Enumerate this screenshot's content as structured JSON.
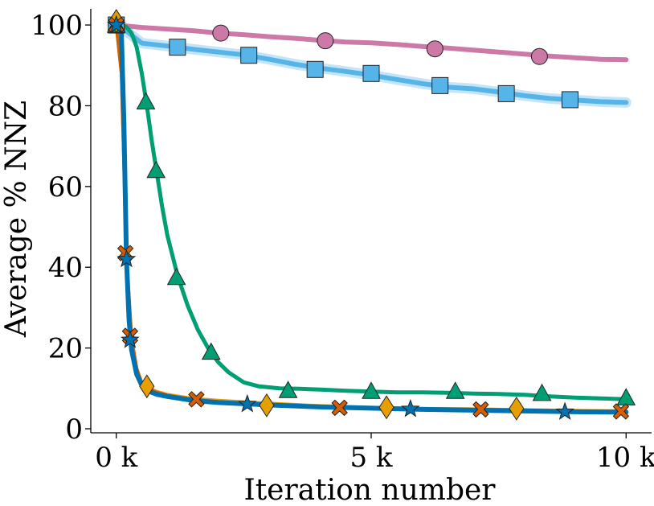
{
  "chart_data": {
    "type": "line",
    "xlabel": "Iteration number",
    "ylabel": "Average % NNZ",
    "xlim": [
      -500,
      10500
    ],
    "ylim": [
      -1,
      104
    ],
    "xticks": [
      0,
      5000,
      10000
    ],
    "xtick_labels": [
      "0 k",
      "5 k",
      "10 k"
    ],
    "yticks": [
      0,
      20,
      40,
      60,
      80,
      100
    ],
    "ytick_labels": [
      "0",
      "20",
      "40",
      "60",
      "80",
      "100"
    ],
    "grid": false,
    "legend": "none",
    "series": [
      {
        "color": "#CC79A7",
        "marker": "circle",
        "x": [
          0,
          500,
          1000,
          1500,
          2000,
          2500,
          3000,
          3500,
          4000,
          4500,
          5000,
          5500,
          6000,
          6500,
          7000,
          7500,
          8000,
          8500,
          9000,
          9500,
          10000
        ],
        "y": [
          100,
          99.4,
          99.0,
          98.6,
          98.0,
          97.6,
          97.1,
          96.7,
          96.2,
          95.8,
          95.6,
          95.2,
          94.7,
          94.3,
          93.8,
          93.3,
          92.8,
          92.3,
          91.9,
          91.5,
          91.4
        ],
        "markers_x": [
          0,
          2050,
          4100,
          6250,
          8300
        ],
        "markers_y": [
          100,
          98.0,
          96.1,
          94.1,
          92.2
        ]
      },
      {
        "color": "#56B4E9",
        "marker": "square",
        "x": [
          0,
          250,
          500,
          1000,
          1500,
          2000,
          2500,
          3000,
          3500,
          4000,
          4500,
          5000,
          5500,
          6000,
          6500,
          7000,
          7500,
          8000,
          8500,
          9000,
          9500,
          10000
        ],
        "y": [
          100,
          98.0,
          95.5,
          94.8,
          94.0,
          93.3,
          92.6,
          91.5,
          90.3,
          89.3,
          88.5,
          87.6,
          86.5,
          85.5,
          84.6,
          84.2,
          83.4,
          82.5,
          81.8,
          81.4,
          81.0,
          80.8
        ],
        "markers_x": [
          0,
          1200,
          2600,
          3900,
          5000,
          6350,
          7650,
          8900
        ],
        "markers_y": [
          100,
          94.5,
          92.5,
          89.0,
          88.0,
          85.0,
          83.0,
          81.5
        ]
      },
      {
        "color": "#009E73",
        "marker": "triangle",
        "x": [
          0,
          100,
          200,
          300,
          400,
          500,
          600,
          700,
          800,
          900,
          1000,
          1200,
          1400,
          1600,
          1800,
          2000,
          2200,
          2500,
          2800,
          3200,
          3600,
          4000,
          4500,
          5000,
          5500,
          6000,
          6500,
          7000,
          7500,
          8000,
          8500,
          9000,
          9500,
          10000
        ],
        "y": [
          100,
          100,
          99.5,
          98.0,
          94.5,
          88.0,
          80.0,
          71.0,
          63.0,
          55.0,
          48.0,
          38.0,
          30.5,
          24.5,
          20.0,
          16.5,
          14.0,
          11.5,
          10.5,
          10.0,
          9.9,
          9.7,
          9.4,
          9.2,
          9.0,
          9.0,
          8.9,
          8.7,
          8.6,
          8.4,
          8.0,
          7.7,
          7.5,
          7.3
        ],
        "markers_x": [
          0,
          580,
          780,
          1180,
          1860,
          3370,
          5000,
          6650,
          8350,
          10000
        ],
        "markers_y": [
          100,
          81.0,
          64.0,
          37.5,
          19.0,
          9.5,
          9.3,
          9.3,
          8.8,
          7.7
        ]
      },
      {
        "color": "#E69F00",
        "marker": "diamond",
        "x": [
          0,
          100,
          200,
          300,
          400,
          500,
          600,
          800,
          1000,
          1500,
          2000,
          3000,
          4000,
          5000,
          6000,
          7000,
          8000,
          9000,
          10000
        ],
        "y": [
          100,
          88.0,
          42.5,
          22.0,
          15.0,
          11.5,
          10.2,
          9.2,
          8.5,
          7.5,
          7.0,
          6.3,
          5.7,
          5.3,
          5.0,
          4.9,
          4.7,
          4.5,
          4.4
        ],
        "markers_x": [
          0,
          600,
          2950,
          5300,
          7850
        ],
        "markers_y": [
          101,
          10.5,
          5.8,
          5.3,
          5.0
        ]
      },
      {
        "color": "#D55E00",
        "marker": "cross",
        "x": [
          0,
          100,
          200,
          300,
          400,
          500,
          600,
          800,
          1000,
          1500,
          2000,
          3000,
          4000,
          5000,
          6000,
          7000,
          8000,
          9000,
          10000
        ],
        "y": [
          100,
          88.0,
          43.0,
          22.5,
          15.0,
          11.0,
          10.0,
          9.0,
          8.3,
          7.3,
          6.7,
          6.0,
          5.5,
          5.2,
          4.9,
          4.8,
          4.6,
          4.4,
          4.3
        ],
        "markers_x": [
          0,
          180,
          270,
          1570,
          4380,
          7150,
          9900
        ],
        "markers_y": [
          100,
          43.5,
          23.0,
          7.3,
          5.2,
          4.8,
          4.3
        ]
      },
      {
        "color": "#0072B2",
        "marker": "star",
        "x": [
          0,
          100,
          150,
          200,
          250,
          300,
          400,
          500,
          600,
          800,
          1000,
          1500,
          2000,
          3000,
          4000,
          5000,
          6000,
          7000,
          8000,
          9000,
          10000
        ],
        "y": [
          100,
          98.0,
          76.0,
          42.0,
          27.0,
          19.5,
          13.5,
          10.8,
          9.5,
          8.5,
          8.0,
          7.0,
          6.5,
          5.9,
          5.4,
          5.1,
          4.8,
          4.6,
          4.4,
          4.2,
          4.1
        ],
        "markers_x": [
          0,
          200,
          270,
          2570,
          5770,
          8800
        ],
        "markers_y": [
          100,
          42.0,
          22.0,
          6.1,
          4.9,
          4.2
        ]
      }
    ]
  }
}
